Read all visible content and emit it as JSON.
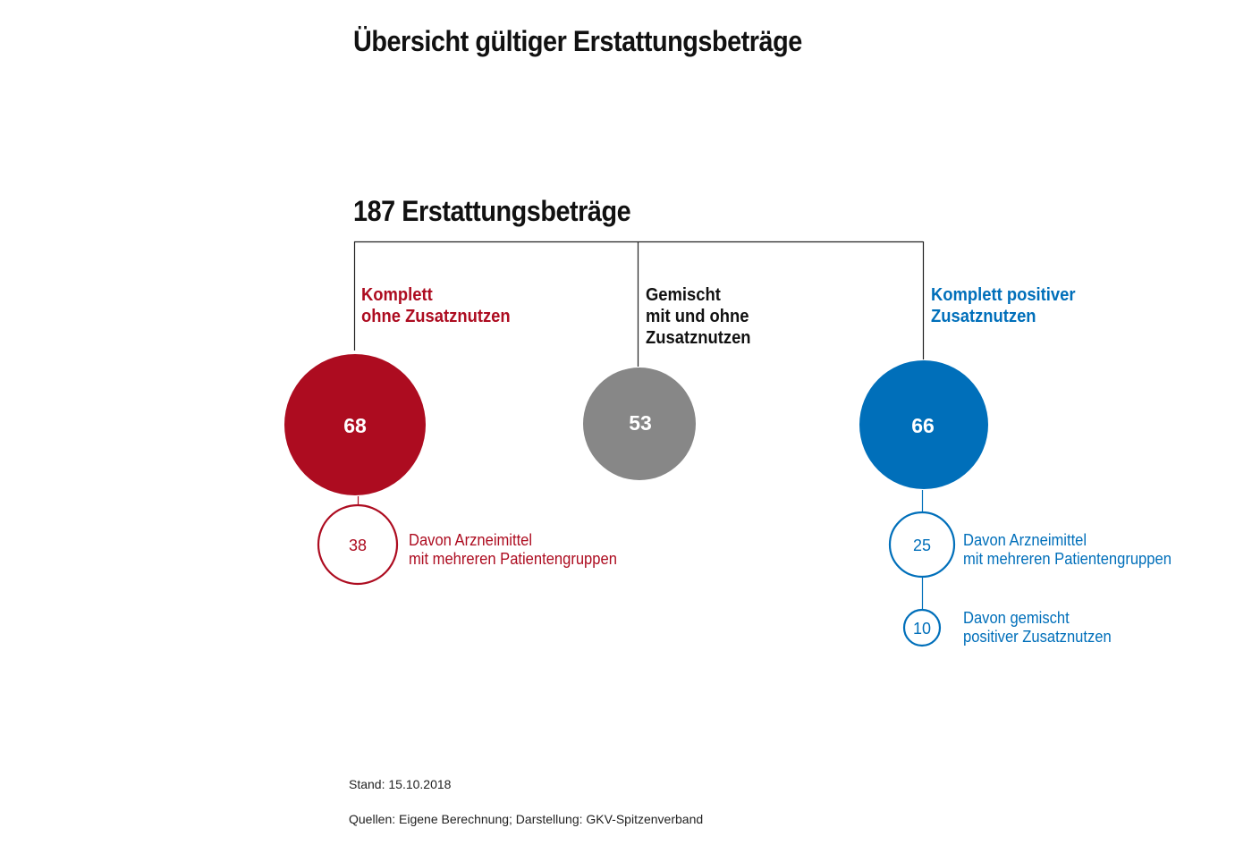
{
  "title": "Übersicht gültiger Erstattungsbeträge",
  "total_label": "187 Erstattungsbeträge",
  "colors": {
    "red": "#ad0c20",
    "gray": "#878787",
    "blue": "#006fba",
    "line": "#222222"
  },
  "categories": [
    {
      "key": "ohne",
      "label_lines": [
        "Komplett",
        "ohne Zusatznutzen"
      ],
      "value": "68",
      "color": "red",
      "sub_items": [
        {
          "value": "38",
          "label_lines": [
            "Davon Arzneimittel",
            "mit mehreren Patientengruppen"
          ]
        }
      ]
    },
    {
      "key": "gemischt",
      "label_lines": [
        "Gemischt",
        "mit und ohne",
        "Zusatznutzen"
      ],
      "value": "53",
      "color": "gray",
      "sub_items": []
    },
    {
      "key": "positiv",
      "label_lines": [
        "Komplett positiver",
        "Zusatznutzen"
      ],
      "value": "66",
      "color": "blue",
      "sub_items": [
        {
          "value": "25",
          "label_lines": [
            "Davon Arzneimittel",
            "mit mehreren Patientengruppen"
          ]
        },
        {
          "value": "10",
          "label_lines": [
            "Davon gemischt",
            "positiver Zusatznutzen"
          ]
        }
      ]
    }
  ],
  "footer": {
    "stand": "Stand: 15.10.2018",
    "quellen": "Quellen: Eigene Berechnung; Darstellung: GKV-Spitzenverband"
  }
}
